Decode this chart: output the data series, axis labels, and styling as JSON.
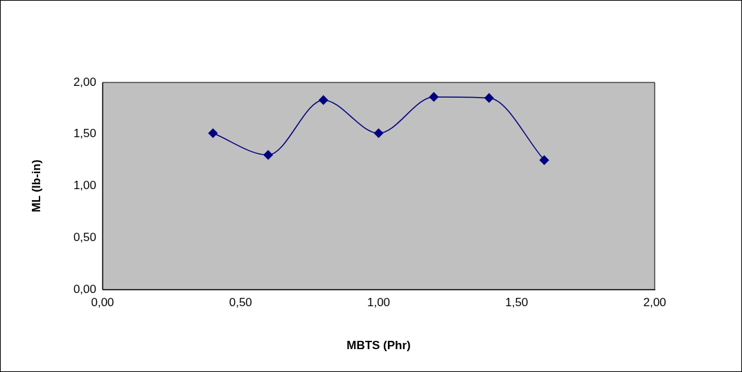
{
  "chart_data": {
    "type": "line",
    "xlabel": "MBTS (Phr)",
    "ylabel": "ML (lb-in)",
    "x": [
      0.4,
      0.6,
      0.8,
      1.0,
      1.2,
      1.4,
      1.6
    ],
    "series": [
      {
        "color": "#000080",
        "values": [
          1.51,
          1.3,
          1.83,
          1.51,
          1.86,
          1.85,
          1.25
        ]
      }
    ],
    "xlim": [
      0,
      2
    ],
    "ylim": [
      0,
      2
    ],
    "xticks": [
      {
        "value": 0,
        "label": "0,00"
      },
      {
        "value": 0.5,
        "label": "0,50"
      },
      {
        "value": 1,
        "label": "1,00"
      },
      {
        "value": 1.5,
        "label": "1,50"
      },
      {
        "value": 2,
        "label": "2,00"
      }
    ],
    "yticks": [
      {
        "value": 0,
        "label": "0,00"
      },
      {
        "value": 0.5,
        "label": "0,50"
      },
      {
        "value": 1,
        "label": "1,00"
      },
      {
        "value": 1.5,
        "label": "1,50"
      },
      {
        "value": 2,
        "label": "2,00"
      }
    ],
    "grid": false,
    "legend": false,
    "marker": "diamond",
    "line_style": "solid"
  }
}
